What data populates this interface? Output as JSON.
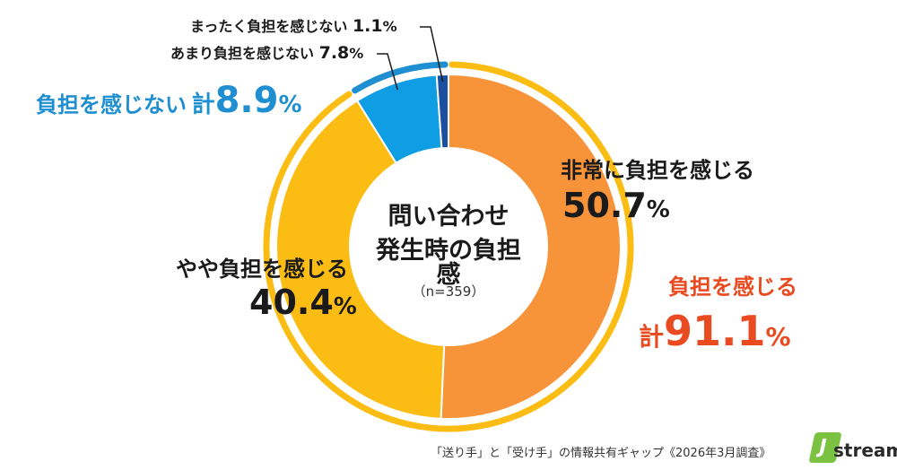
{
  "chart_data": {
    "type": "pie",
    "center_title_line1": "問い合わせ",
    "center_title_line2": "発生時の負担感",
    "sample_size": "（n=359）",
    "slices": [
      {
        "label": "非常に負担を感じる",
        "value": 50.7,
        "value_text": "50.7",
        "color": "#f7943a"
      },
      {
        "label": "やや負担を感じる",
        "value": 40.4,
        "value_text": "40.4",
        "color": "#fbbd14"
      },
      {
        "label": "あまり負担を感じない",
        "value": 7.8,
        "value_text": "7.8",
        "color": "#0f9de3"
      },
      {
        "label": "まったく負担を感じない",
        "value": 1.1,
        "value_text": "1.1",
        "color": "#1b4fa0"
      }
    ],
    "groups": [
      {
        "label": "負担を感じる",
        "prefix": "計",
        "value": 91.1,
        "value_text": "91.1",
        "color": "#fbbd14",
        "text_color": "#ea4a1f"
      },
      {
        "label": "負担を感じない",
        "prefix": "計",
        "value": 8.9,
        "value_text": "8.9",
        "color": "#1f8fd1",
        "text_color": "#1f8fd1"
      }
    ],
    "percent_sign": "%"
  },
  "footer": "「送り手」と「受け手」の情報共有ギャップ《2026年3月調査》",
  "logo": {
    "mark": "J",
    "text": "stream",
    "color": "#7cc242"
  }
}
